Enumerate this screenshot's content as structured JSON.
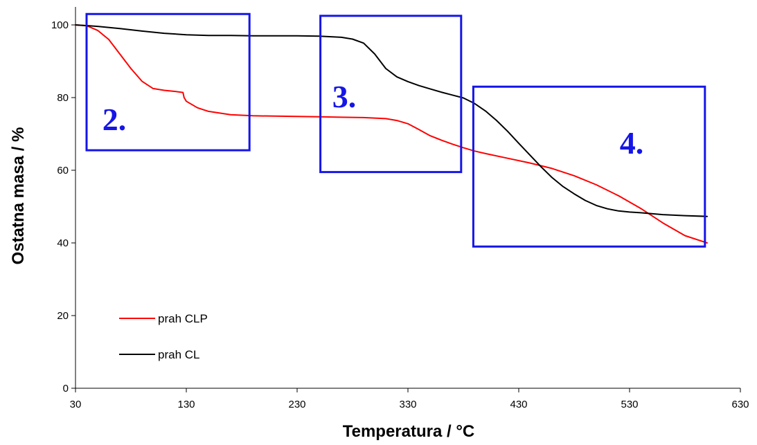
{
  "chart_data": {
    "type": "line",
    "title": "",
    "xlabel": "Temperatura / °C",
    "ylabel": "Ostatna masa / %",
    "xlim": [
      30,
      630
    ],
    "ylim": [
      0,
      105
    ],
    "x_ticks": [
      30,
      130,
      230,
      330,
      430,
      530,
      630
    ],
    "y_ticks": [
      0,
      20,
      40,
      60,
      80,
      100
    ],
    "grid": false,
    "legend_position": "lower-left",
    "series": [
      {
        "name": "prah CLP",
        "color": "#ff0000",
        "x": [
          30,
          40,
          50,
          60,
          70,
          80,
          90,
          100,
          110,
          120,
          127,
          128,
          130,
          140,
          150,
          170,
          190,
          210,
          230,
          250,
          270,
          290,
          310,
          320,
          330,
          340,
          350,
          360,
          370,
          380,
          390,
          400,
          420,
          440,
          460,
          480,
          500,
          520,
          540,
          560,
          580,
          600
        ],
        "y": [
          100,
          99.8,
          98.5,
          96,
          92,
          88,
          84.5,
          82.5,
          82,
          81.7,
          81.4,
          80,
          79,
          77.2,
          76.2,
          75.3,
          75,
          74.9,
          74.8,
          74.7,
          74.6,
          74.5,
          74.2,
          73.7,
          72.8,
          71.2,
          69.5,
          68.3,
          67.2,
          66.2,
          65.3,
          64.6,
          63.3,
          62,
          60.5,
          58.5,
          56,
          53,
          49.5,
          45.5,
          42,
          40
        ]
      },
      {
        "name": "prah CL",
        "color": "#000000",
        "x": [
          30,
          50,
          70,
          90,
          110,
          130,
          150,
          170,
          190,
          210,
          230,
          250,
          270,
          280,
          290,
          300,
          310,
          320,
          330,
          340,
          350,
          360,
          370,
          380,
          390,
          400,
          410,
          420,
          430,
          440,
          450,
          460,
          470,
          480,
          490,
          500,
          510,
          520,
          530,
          540,
          560,
          580,
          600
        ],
        "y": [
          100,
          99.6,
          99,
          98.3,
          97.7,
          97.3,
          97.1,
          97.1,
          97,
          97,
          97,
          96.9,
          96.6,
          96.1,
          95,
          92,
          88,
          85.7,
          84.4,
          83.3,
          82.4,
          81.5,
          80.7,
          79.9,
          78.4,
          76.3,
          73.7,
          70.7,
          67.4,
          64.2,
          61,
          58,
          55.5,
          53.5,
          51.7,
          50.3,
          49.4,
          48.8,
          48.5,
          48.3,
          47.8,
          47.5,
          47.3
        ]
      }
    ],
    "region_boxes": [
      {
        "label": "2.",
        "color": "#1515e8",
        "x_range": [
          40,
          187
        ],
        "y_range": [
          65.5,
          103
        ]
      },
      {
        "label": "3.",
        "color": "#1515e8",
        "x_range": [
          251,
          378
        ],
        "y_range": [
          59.5,
          102.5
        ]
      },
      {
        "label": "4.",
        "color": "#1515e8",
        "x_range": [
          389,
          598
        ],
        "y_range": [
          39,
          83
        ]
      }
    ]
  }
}
